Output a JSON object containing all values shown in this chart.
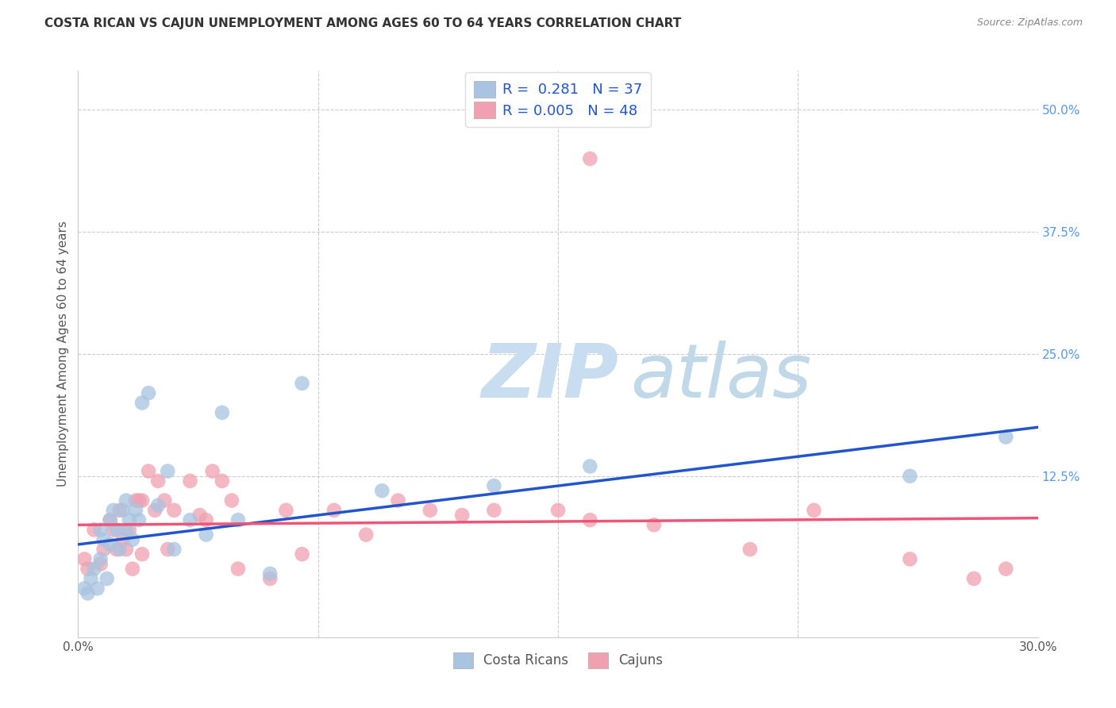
{
  "title": "COSTA RICAN VS CAJUN UNEMPLOYMENT AMONG AGES 60 TO 64 YEARS CORRELATION CHART",
  "source": "Source: ZipAtlas.com",
  "ylabel_left": "Unemployment Among Ages 60 to 64 years",
  "legend_label_blue": "Costa Ricans",
  "legend_label_pink": "Cajuns",
  "legend_blue_r": "0.281",
  "legend_blue_n": "37",
  "legend_pink_r": "0.005",
  "legend_pink_n": "48",
  "blue_color": "#A8C4E0",
  "pink_color": "#F0A0B0",
  "blue_line_color": "#2255CC",
  "pink_line_color": "#EE5577",
  "watermark_zip_color": "#C8DDF0",
  "watermark_atlas_color": "#C0D8E8",
  "background_color": "#FFFFFF",
  "grid_color": "#CCCCCC",
  "xlim": [
    0.0,
    0.3
  ],
  "ylim": [
    -0.04,
    0.54
  ],
  "ytick_right_positions": [
    0.0,
    0.125,
    0.25,
    0.375,
    0.5
  ],
  "ytick_right_labels": [
    "",
    "12.5%",
    "25.0%",
    "37.5%",
    "50.0%"
  ],
  "xtick_positions": [
    0.0,
    0.075,
    0.15,
    0.225,
    0.3
  ],
  "xtick_labels": [
    "0.0%",
    "",
    "",
    "",
    "30.0%"
  ],
  "blue_points_x": [
    0.002,
    0.003,
    0.004,
    0.005,
    0.006,
    0.007,
    0.007,
    0.008,
    0.009,
    0.01,
    0.01,
    0.011,
    0.012,
    0.013,
    0.014,
    0.015,
    0.015,
    0.016,
    0.017,
    0.018,
    0.019,
    0.02,
    0.022,
    0.025,
    0.028,
    0.03,
    0.035,
    0.04,
    0.045,
    0.05,
    0.06,
    0.07,
    0.095,
    0.13,
    0.16,
    0.26,
    0.29
  ],
  "blue_points_y": [
    0.01,
    0.005,
    0.02,
    0.03,
    0.01,
    0.04,
    0.07,
    0.06,
    0.02,
    0.055,
    0.08,
    0.09,
    0.07,
    0.05,
    0.09,
    0.07,
    0.1,
    0.08,
    0.06,
    0.09,
    0.08,
    0.2,
    0.21,
    0.095,
    0.13,
    0.05,
    0.08,
    0.065,
    0.19,
    0.08,
    0.025,
    0.22,
    0.11,
    0.115,
    0.135,
    0.125,
    0.165
  ],
  "pink_points_x": [
    0.002,
    0.003,
    0.005,
    0.007,
    0.008,
    0.01,
    0.011,
    0.012,
    0.013,
    0.014,
    0.015,
    0.016,
    0.017,
    0.018,
    0.019,
    0.02,
    0.02,
    0.022,
    0.024,
    0.025,
    0.027,
    0.028,
    0.03,
    0.035,
    0.038,
    0.04,
    0.042,
    0.045,
    0.048,
    0.05,
    0.06,
    0.065,
    0.07,
    0.08,
    0.09,
    0.1,
    0.11,
    0.12,
    0.13,
    0.15,
    0.16,
    0.18,
    0.21,
    0.23,
    0.26,
    0.28,
    0.16,
    0.29
  ],
  "pink_points_y": [
    0.04,
    0.03,
    0.07,
    0.035,
    0.05,
    0.08,
    0.07,
    0.05,
    0.09,
    0.06,
    0.05,
    0.07,
    0.03,
    0.1,
    0.1,
    0.1,
    0.045,
    0.13,
    0.09,
    0.12,
    0.1,
    0.05,
    0.09,
    0.12,
    0.085,
    0.08,
    0.13,
    0.12,
    0.1,
    0.03,
    0.02,
    0.09,
    0.045,
    0.09,
    0.065,
    0.1,
    0.09,
    0.085,
    0.09,
    0.09,
    0.08,
    0.075,
    0.05,
    0.09,
    0.04,
    0.02,
    0.45,
    0.03
  ],
  "blue_line_x": [
    0.0,
    0.3
  ],
  "blue_line_y": [
    0.055,
    0.175
  ],
  "pink_line_x": [
    0.0,
    0.3
  ],
  "pink_line_y": [
    0.075,
    0.082
  ]
}
